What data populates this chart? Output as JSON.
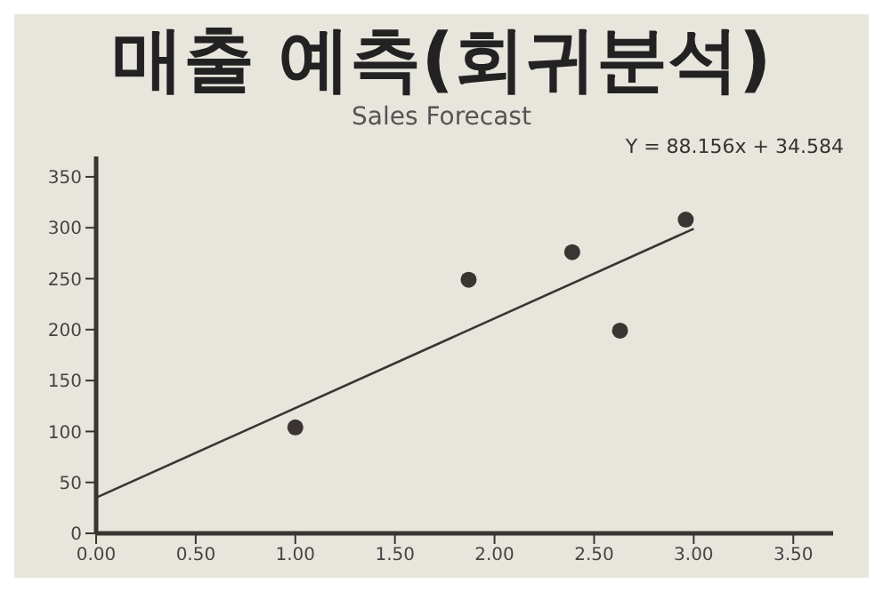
{
  "chart_data": {
    "type": "scatter",
    "title": "매출 예측(회귀분석)",
    "subtitle": "Sales Forecast",
    "annotations": [
      "Y = 88.156x + 34.584"
    ],
    "series": [
      {
        "color": "#3a3533",
        "marker": "circle",
        "x": [
          1.0,
          1.87,
          2.39,
          2.63,
          2.96
        ],
        "values": [
          104,
          249,
          276,
          199,
          308
        ]
      },
      {
        "type": "line",
        "color": "#3a3533",
        "marker": "none",
        "x": [
          0,
          3.0
        ],
        "values": [
          35,
          299
        ]
      }
    ],
    "xlim": [
      0,
      3.7
    ],
    "xticks": [
      {
        "value": 0,
        "label": "0.00"
      },
      {
        "value": 0.5,
        "label": "0.50"
      },
      {
        "value": 1,
        "label": "1.00"
      },
      {
        "value": 1.5,
        "label": "1.50"
      },
      {
        "value": 2,
        "label": "2.00"
      },
      {
        "value": 2.5,
        "label": "2.50"
      },
      {
        "value": 3,
        "label": "3.00"
      },
      {
        "value": 3.5,
        "label": "3.50"
      }
    ],
    "ylim": [
      0,
      370
    ],
    "yticks": [
      0,
      50,
      100,
      150,
      200,
      250,
      300,
      350
    ],
    "grid": false,
    "legend": false,
    "line_style": "solid"
  }
}
